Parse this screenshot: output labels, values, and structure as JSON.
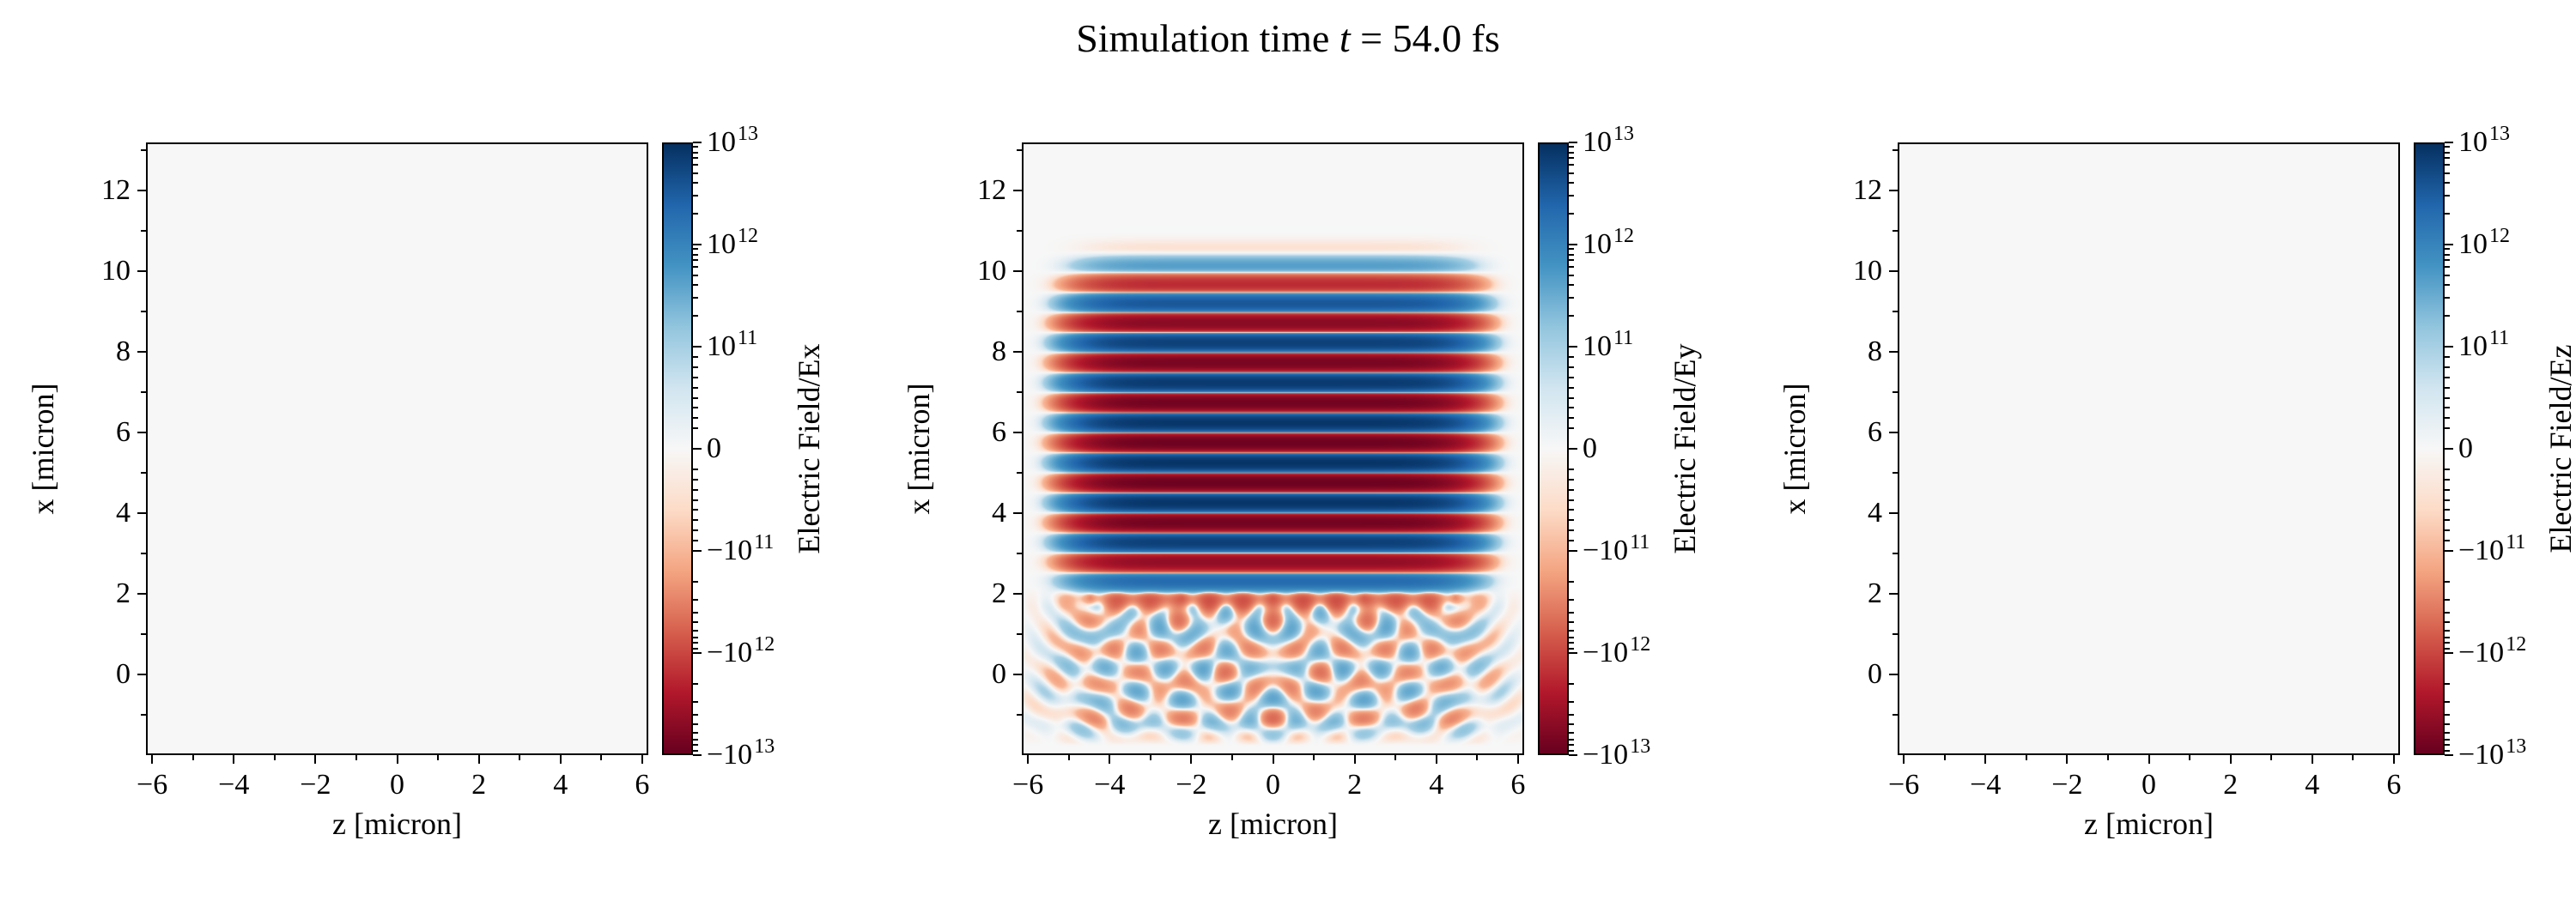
{
  "figure": {
    "title_parts": {
      "prefix": "Simulation time ",
      "variable": "t",
      "suffix": " = 54.0 fs"
    },
    "title_plain": "Simulation time t = 54.0 fs"
  },
  "chart_data": {
    "type": "heatmap",
    "title": "Simulation time t = 54.0 fs",
    "simulation_time_fs": 54.0,
    "x_axis": {
      "label": "z [micron]",
      "lim": [
        -6.15,
        6.15
      ],
      "ticks": [
        -6,
        -4,
        -2,
        0,
        2,
        4,
        6
      ],
      "minor_ticks": [
        -5,
        -3,
        -1,
        1,
        3,
        5
      ]
    },
    "y_axis": {
      "label": "x [micron]",
      "lim": [
        -2.0,
        13.2
      ],
      "ticks": [
        12,
        10,
        8,
        6,
        4,
        2,
        0
      ],
      "minor_ticks": [
        13,
        11,
        9,
        7,
        5,
        3,
        1,
        -1
      ]
    },
    "colorbar": {
      "scale": "symlog",
      "linthresh": 100000000000.0,
      "ticks": [
        {
          "value": 10000000000000.0,
          "base": "10",
          "exp": "13"
        },
        {
          "value": 1000000000000.0,
          "base": "10",
          "exp": "12"
        },
        {
          "value": 100000000000.0,
          "base": "10",
          "exp": "11"
        },
        {
          "value": 0,
          "base": "0",
          "exp": ""
        },
        {
          "value": -100000000000.0,
          "base": "−10",
          "exp": "11"
        },
        {
          "value": -1000000000000.0,
          "base": "−10",
          "exp": "12"
        },
        {
          "value": -10000000000000.0,
          "base": "−10",
          "exp": "13"
        }
      ],
      "cmap_name": "RdBu",
      "cmap_stops": [
        [
          0.0,
          "#67001f"
        ],
        [
          0.1,
          "#b2182b"
        ],
        [
          0.2,
          "#d6604d"
        ],
        [
          0.3,
          "#f4a582"
        ],
        [
          0.4,
          "#fddbc7"
        ],
        [
          0.5,
          "#f7f7f7"
        ],
        [
          0.6,
          "#d1e5f0"
        ],
        [
          0.7,
          "#92c5de"
        ],
        [
          0.8,
          "#4393c3"
        ],
        [
          0.9,
          "#2166ac"
        ],
        [
          1.0,
          "#053061"
        ]
      ]
    },
    "panels": [
      {
        "id": "ex",
        "field": "Ex",
        "colorbar_label": "Electric Field/Ex",
        "content": "uniform-zero"
      },
      {
        "id": "ey",
        "field": "Ey",
        "colorbar_label": "Electric Field/Ey",
        "content": "laser-pulse"
      },
      {
        "id": "ez",
        "field": "Ez",
        "colorbar_label": "Electric Field/Ez",
        "content": "uniform-zero"
      }
    ],
    "ey_model": {
      "description": "Laser pulse with horizontal fringes between x≈2 and x≈10 spanning z≈−5.5..5.5, peak |Ey|≈1e13; faint scattered circular wavelets fanning below x≈2",
      "wavelength_um": 1.0,
      "amplitude": 9000000000000.0,
      "pulse_x_center": 6.0,
      "pulse_x_halfwidth": 3.6,
      "pulse_z_halfwidth": 4.7,
      "scatter_amplitude": 220000000000.0,
      "scatter_wavelength_um": 0.8,
      "scatter_source_x": 1.9,
      "scatter_source_z": [
        -4.5,
        -2.25,
        0,
        2.25,
        4.5
      ]
    }
  }
}
